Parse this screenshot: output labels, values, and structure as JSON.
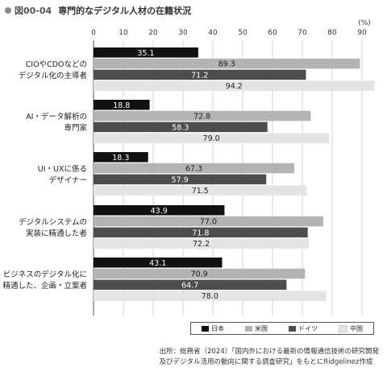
{
  "figure": {
    "number": "図00-04",
    "title": "専門的なデジタル人材の在籍状況"
  },
  "source": {
    "line1": "出所：総務省（2024）「国内外における最新の情報通信技術の研究開発",
    "line2": "及びデジタル活用の動向に関する調査研究」をもとにRidgelinez作成"
  },
  "chart_data": {
    "type": "bar",
    "orientation": "horizontal",
    "unit_label": "(%)",
    "xlim": [
      0,
      95
    ],
    "ticks": [
      0,
      10,
      20,
      30,
      40,
      50,
      60,
      70,
      80,
      90
    ],
    "grid": true,
    "legend_position": "bottom-right",
    "categories": [
      [
        "CIOやCDOなどの",
        "デジタル化の主導者"
      ],
      [
        "AI・データ解析の",
        "専門家"
      ],
      [
        "UI・UXに係る",
        "デザイナー"
      ],
      [
        "デジタルシステムの",
        "実装に精通した者"
      ],
      [
        "ビジネスのデジタル化に",
        "精通した、企画・立案者"
      ]
    ],
    "series": [
      {
        "name": "日本",
        "color": "#111111",
        "label_color": "#ffffff",
        "values": [
          35.1,
          18.8,
          18.3,
          43.9,
          43.1
        ]
      },
      {
        "name": "米国",
        "color": "#b3b3b3",
        "label_color": "#222222",
        "values": [
          89.3,
          72.8,
          67.3,
          77.0,
          70.9
        ]
      },
      {
        "name": "ドイツ",
        "color": "#4d4d4d",
        "label_color": "#ffffff",
        "values": [
          71.2,
          58.3,
          57.9,
          71.8,
          64.7
        ]
      },
      {
        "name": "中国",
        "color": "#e4e4e4",
        "label_color": "#222222",
        "values": [
          94.2,
          79.0,
          71.5,
          72.2,
          78.0
        ]
      }
    ]
  }
}
